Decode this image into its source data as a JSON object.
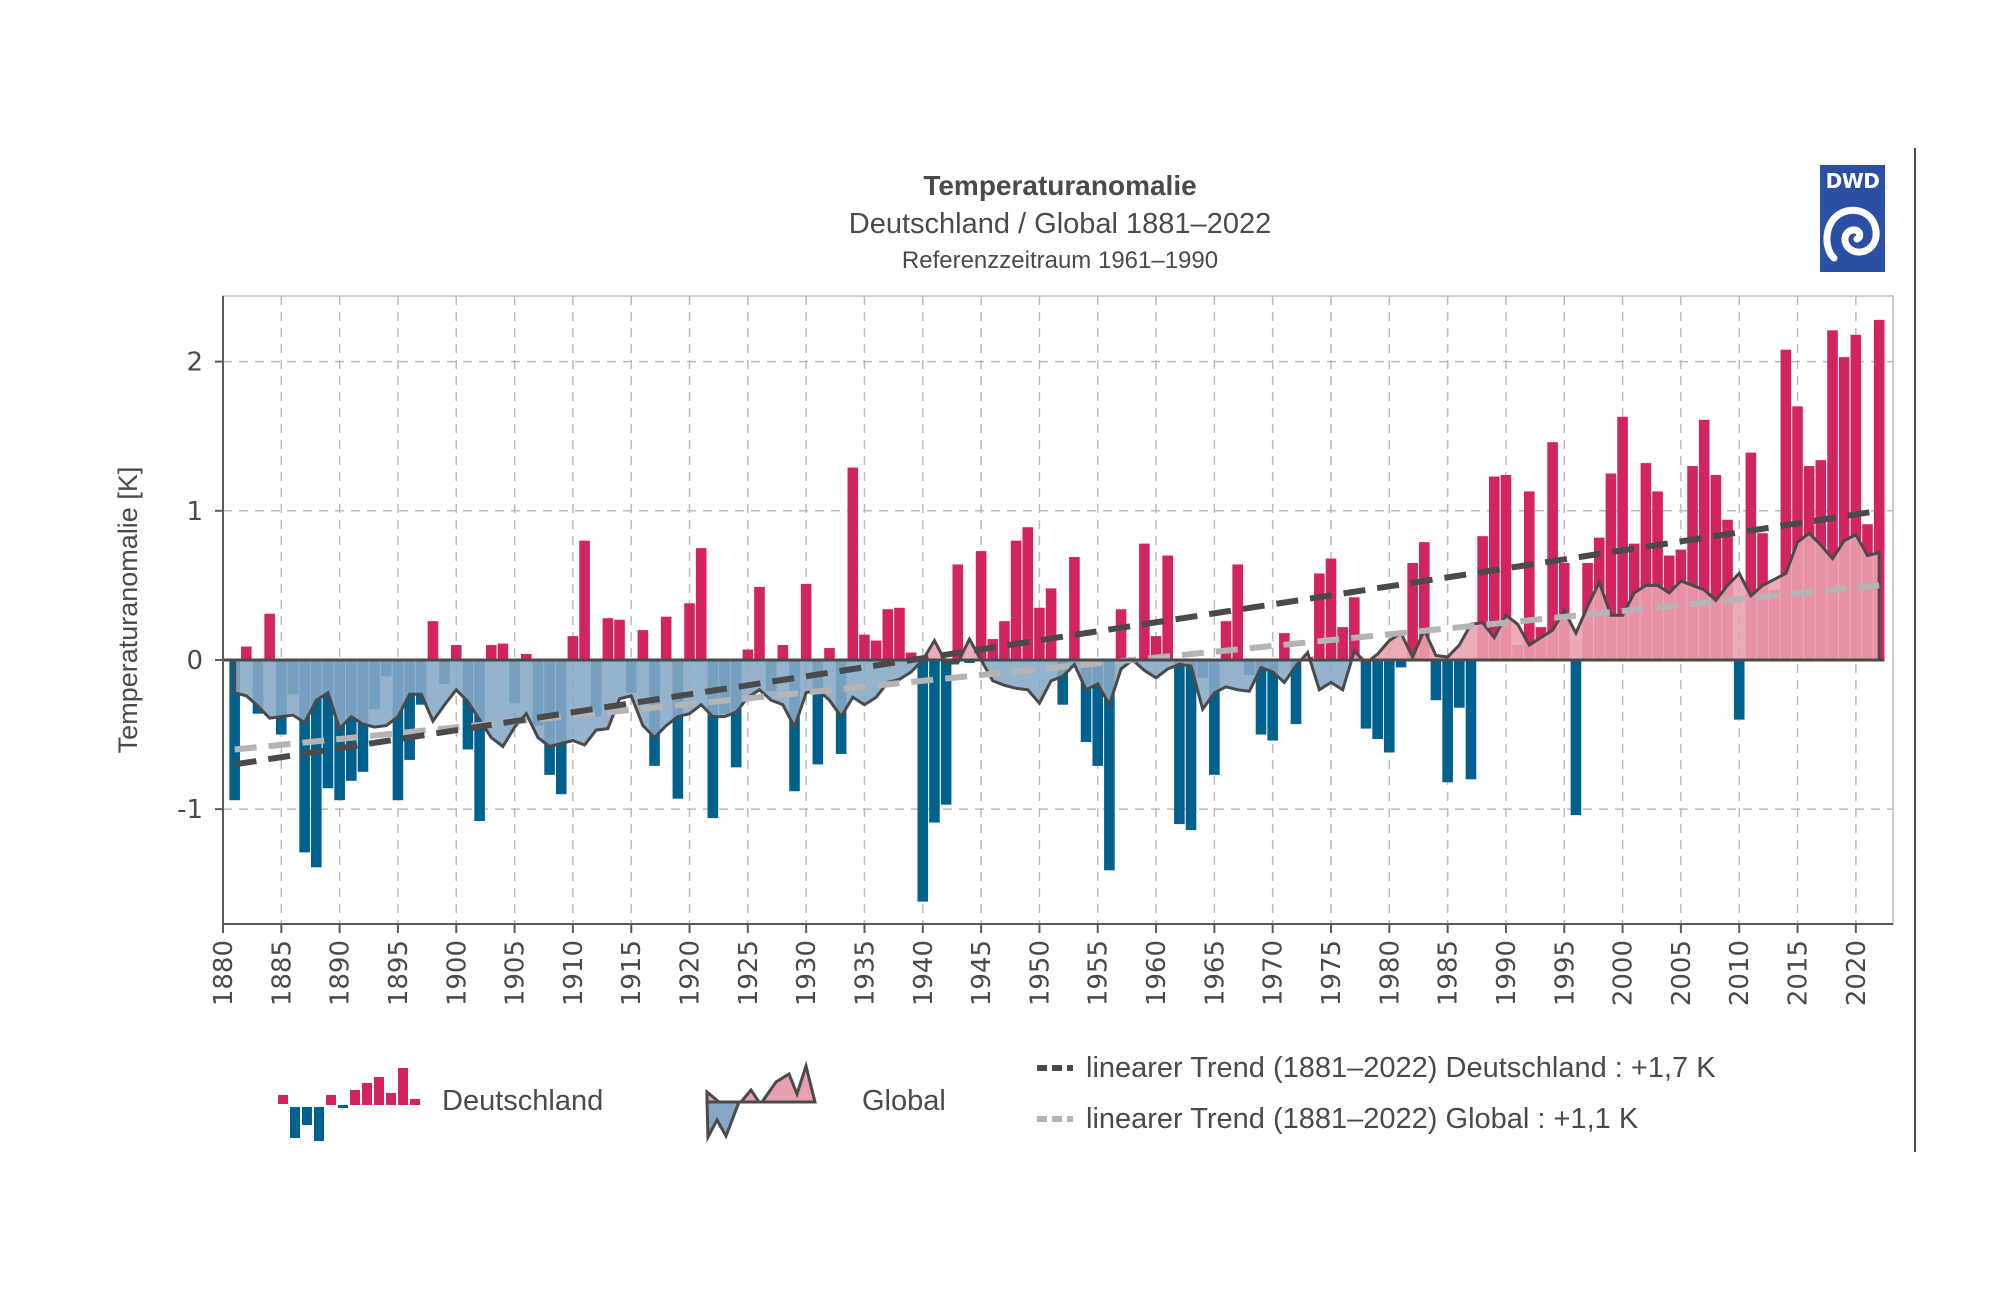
{
  "header": {
    "title": "Temperaturanomalie",
    "subtitle": "Deutschland / Global 1881–2022",
    "reference": "Referenzzeitraum 1961–1990",
    "logo_text": "DWD"
  },
  "legend": {
    "deutschland": "Deutschland",
    "global": "Global",
    "trend_de": "linearer Trend (1881–2022) Deutschland : +1,7 K",
    "trend_global": "linearer Trend (1881–2022) Global : +1,1 K"
  },
  "colors": {
    "positive_bar": "#d2245e",
    "negative_bar": "#00618c",
    "global_positive_fill": "#e8a0ae",
    "global_negative_fill": "#86a8c6",
    "global_line": "#4a4a4a",
    "trend_de": "#4a4a4a",
    "trend_global": "#b4b4b4",
    "logo": "#2b4fa3"
  },
  "chart_data": {
    "type": "bar",
    "title": "Temperaturanomalie",
    "subtitle": "Deutschland / Global 1881–2022",
    "note": "Referenzzeitraum 1961–1990",
    "xlabel": "",
    "ylabel": "Temperaturanomalie [K]",
    "xlim": [
      1880,
      2022.5
    ],
    "ylim": [
      -1.77,
      2.44
    ],
    "yticks": [
      -1,
      0,
      1,
      2
    ],
    "ytick_labels": [
      "-1",
      "0",
      "1",
      "2"
    ],
    "xticks": [
      1880,
      1885,
      1890,
      1895,
      1900,
      1905,
      1910,
      1915,
      1920,
      1925,
      1930,
      1935,
      1940,
      1945,
      1950,
      1955,
      1960,
      1965,
      1970,
      1975,
      1980,
      1985,
      1990,
      1995,
      2000,
      2005,
      2010,
      2015,
      2020
    ],
    "grid": true,
    "legend_position": "bottom",
    "x_start": 1881,
    "series": [
      {
        "name": "Deutschland",
        "kind": "bar",
        "values": [
          -0.94,
          0.09,
          -0.36,
          0.31,
          -0.5,
          -0.23,
          -1.29,
          -1.39,
          -0.86,
          -0.94,
          -0.81,
          -0.75,
          -0.33,
          -0.11,
          -0.94,
          -0.67,
          -0.3,
          0.26,
          -0.16,
          0.1,
          -0.6,
          -1.08,
          0.1,
          0.11,
          -0.29,
          0.04,
          -0.44,
          -0.77,
          -0.9,
          0.16,
          0.8,
          -0.38,
          0.28,
          0.27,
          -0.22,
          0.2,
          -0.71,
          0.29,
          -0.93,
          0.38,
          0.75,
          -1.06,
          -0.36,
          -0.72,
          0.07,
          0.49,
          -0.21,
          0.1,
          -0.88,
          0.51,
          -0.7,
          0.08,
          -0.63,
          1.29,
          0.17,
          0.13,
          0.34,
          0.35,
          0.05,
          -1.62,
          -1.09,
          -0.97,
          0.64,
          -0.02,
          0.73,
          0.14,
          0.26,
          0.8,
          0.89,
          0.35,
          0.48,
          -0.3,
          0.69,
          -0.55,
          -0.71,
          -1.41,
          0.34,
          -0.02,
          0.78,
          0.16,
          0.7,
          -1.1,
          -1.14,
          -0.12,
          -0.77,
          0.26,
          0.64,
          -0.1,
          -0.5,
          -0.54,
          0.18,
          -0.43,
          0.02,
          0.58,
          0.68,
          0.22,
          0.42,
          -0.46,
          -0.53,
          -0.62,
          -0.05,
          0.65,
          0.79,
          -0.27,
          -0.82,
          -0.32,
          -0.8,
          0.83,
          1.23,
          1.24,
          0.1,
          1.13,
          0.22,
          1.46,
          0.65,
          -1.04,
          0.65,
          0.82,
          1.25,
          1.63,
          0.78,
          1.32,
          1.13,
          0.7,
          0.74,
          1.3,
          1.61,
          1.24,
          0.94,
          -0.4,
          1.39,
          0.85,
          0.47,
          2.08,
          1.7,
          1.3,
          1.34,
          2.21,
          2.03,
          2.18,
          0.91,
          2.28
        ]
      },
      {
        "name": "Global",
        "kind": "area",
        "values": [
          -0.22,
          -0.24,
          -0.31,
          -0.39,
          -0.38,
          -0.37,
          -0.42,
          -0.27,
          -0.22,
          -0.46,
          -0.38,
          -0.43,
          -0.45,
          -0.44,
          -0.38,
          -0.23,
          -0.23,
          -0.41,
          -0.3,
          -0.2,
          -0.28,
          -0.4,
          -0.52,
          -0.58,
          -0.45,
          -0.36,
          -0.52,
          -0.58,
          -0.56,
          -0.54,
          -0.57,
          -0.47,
          -0.46,
          -0.26,
          -0.24,
          -0.44,
          -0.52,
          -0.44,
          -0.38,
          -0.36,
          -0.3,
          -0.38,
          -0.38,
          -0.35,
          -0.25,
          -0.2,
          -0.27,
          -0.3,
          -0.45,
          -0.22,
          -0.2,
          -0.27,
          -0.38,
          -0.25,
          -0.3,
          -0.25,
          -0.15,
          -0.13,
          -0.08,
          0.0,
          0.13,
          -0.02,
          -0.02,
          0.14,
          0.0,
          -0.14,
          -0.17,
          -0.19,
          -0.2,
          -0.29,
          -0.14,
          -0.11,
          -0.03,
          -0.2,
          -0.16,
          -0.3,
          -0.06,
          0.0,
          -0.07,
          -0.12,
          -0.06,
          -0.03,
          -0.04,
          -0.33,
          -0.22,
          -0.18,
          -0.2,
          -0.21,
          -0.05,
          -0.08,
          -0.15,
          -0.04,
          0.05,
          -0.2,
          -0.15,
          -0.2,
          0.06,
          -0.02,
          0.04,
          0.13,
          0.18,
          0.02,
          0.2,
          0.03,
          0.02,
          0.1,
          0.24,
          0.25,
          0.15,
          0.3,
          0.24,
          0.1,
          0.15,
          0.2,
          0.33,
          0.18,
          0.36,
          0.52,
          0.3,
          0.3,
          0.45,
          0.5,
          0.5,
          0.45,
          0.53,
          0.5,
          0.47,
          0.4,
          0.5,
          0.58,
          0.43,
          0.5,
          0.54,
          0.58,
          0.79,
          0.85,
          0.77,
          0.68,
          0.8,
          0.84,
          0.7,
          0.72
        ]
      },
      {
        "name": "linearer Trend (1881–2022) Deutschland : +1,7 K",
        "kind": "trend",
        "start": [
          1881,
          -0.7
        ],
        "end": [
          2022,
          1.0
        ]
      },
      {
        "name": "linearer Trend (1881–2022) Global : +1,1 K",
        "kind": "trend",
        "start": [
          1881,
          -0.6
        ],
        "end": [
          2022,
          0.5
        ]
      }
    ]
  }
}
